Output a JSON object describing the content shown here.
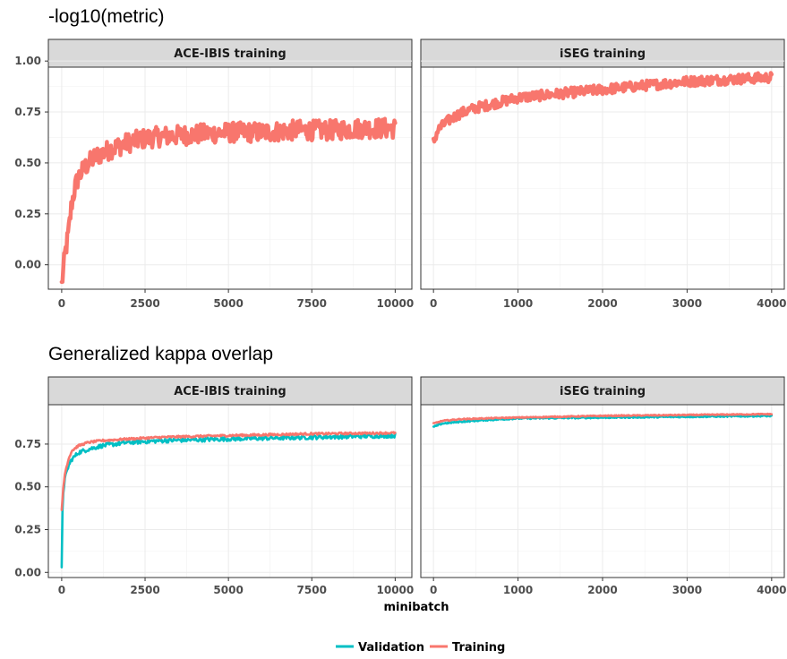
{
  "chart_data": [
    {
      "type": "line",
      "title": "-log10(metric)",
      "xlabel": "",
      "ylabel": "",
      "ylim": [
        -0.12,
        0.97
      ],
      "yticks": [
        "1.00",
        "0.75",
        "0.50",
        "0.25",
        "0.00"
      ],
      "ytick_values": [
        1.0,
        0.75,
        0.5,
        0.25,
        0.0
      ],
      "grid": true,
      "panels": [
        {
          "strip": "ACE-IBIS training",
          "xlim": [
            -400,
            10500
          ],
          "xticks": [
            "0",
            "2500",
            "5000",
            "7500",
            "10000"
          ],
          "xtick_values": [
            0,
            2500,
            5000,
            7500,
            10000
          ],
          "series": [
            {
              "name": "Training",
              "color": "#F8766D",
              "x": [
                0,
                100,
                200,
                300,
                400,
                500,
                700,
                1000,
                1500,
                2000,
                2500,
                3000,
                4000,
                5000,
                6000,
                7000,
                8000,
                9000,
                10000
              ],
              "values": [
                -0.1,
                0.05,
                0.15,
                0.3,
                0.38,
                0.43,
                0.48,
                0.53,
                0.57,
                0.6,
                0.62,
                0.63,
                0.64,
                0.65,
                0.65,
                0.66,
                0.66,
                0.67,
                0.67
              ],
              "noise": 0.05
            }
          ]
        },
        {
          "strip": "iSEG training",
          "xlim": [
            -150,
            4150
          ],
          "xticks": [
            "0",
            "1000",
            "2000",
            "3000",
            "4000"
          ],
          "xtick_values": [
            0,
            1000,
            2000,
            3000,
            4000
          ],
          "series": [
            {
              "name": "Training",
              "color": "#F8766D",
              "x": [
                0,
                50,
                150,
                300,
                500,
                1000,
                1500,
                2000,
                2500,
                3000,
                3500,
                4000
              ],
              "values": [
                0.6,
                0.66,
                0.7,
                0.74,
                0.77,
                0.82,
                0.84,
                0.86,
                0.88,
                0.9,
                0.91,
                0.92
              ],
              "noise": 0.025
            }
          ]
        }
      ]
    },
    {
      "type": "line",
      "title": "Generalized kappa overlap",
      "xlabel": "minibatch",
      "ylabel": "",
      "ylim": [
        -0.03,
        0.98
      ],
      "yticks": [
        "0.75",
        "0.50",
        "0.25",
        "0.00"
      ],
      "ytick_values": [
        0.75,
        0.5,
        0.25,
        0.0
      ],
      "grid": true,
      "panels": [
        {
          "strip": "ACE-IBIS training",
          "xlim": [
            -400,
            10500
          ],
          "xticks": [
            "0",
            "2500",
            "5000",
            "7500",
            "10000"
          ],
          "xtick_values": [
            0,
            2500,
            5000,
            7500,
            10000
          ],
          "series": [
            {
              "name": "Validation",
              "color": "#00BFC4",
              "x": [
                0,
                20,
                50,
                100,
                200,
                300,
                500,
                800,
                1200,
                2000,
                3000,
                5000,
                7500,
                10000
              ],
              "values": [
                0.02,
                0.35,
                0.48,
                0.55,
                0.62,
                0.66,
                0.7,
                0.72,
                0.74,
                0.76,
                0.77,
                0.78,
                0.79,
                0.8
              ],
              "noise": 0.012
            },
            {
              "name": "Training",
              "color": "#F8766D",
              "x": [
                0,
                50,
                100,
                200,
                300,
                500,
                800,
                1200,
                2000,
                3000,
                5000,
                7500,
                10000
              ],
              "values": [
                0.36,
                0.5,
                0.58,
                0.66,
                0.71,
                0.74,
                0.76,
                0.77,
                0.78,
                0.79,
                0.8,
                0.81,
                0.815
              ],
              "noise": 0.006
            }
          ]
        },
        {
          "strip": "iSEG training",
          "xlim": [
            -150,
            4150
          ],
          "xticks": [
            "0",
            "1000",
            "2000",
            "3000",
            "4000"
          ],
          "xtick_values": [
            0,
            1000,
            2000,
            3000,
            4000
          ],
          "series": [
            {
              "name": "Validation",
              "color": "#00BFC4",
              "x": [
                0,
                100,
                300,
                600,
                1000,
                2000,
                3000,
                4000
              ],
              "values": [
                0.85,
                0.87,
                0.88,
                0.89,
                0.9,
                0.905,
                0.91,
                0.915
              ],
              "noise": 0.004
            },
            {
              "name": "Training",
              "color": "#F8766D",
              "x": [
                0,
                100,
                300,
                600,
                1000,
                2000,
                3000,
                4000
              ],
              "values": [
                0.87,
                0.885,
                0.895,
                0.9,
                0.905,
                0.915,
                0.92,
                0.925
              ],
              "noise": 0.003
            }
          ]
        }
      ]
    }
  ],
  "legend": {
    "position": "bottom",
    "items": [
      {
        "label": "Validation",
        "color": "#00BFC4"
      },
      {
        "label": "Training",
        "color": "#F8766D"
      }
    ]
  }
}
